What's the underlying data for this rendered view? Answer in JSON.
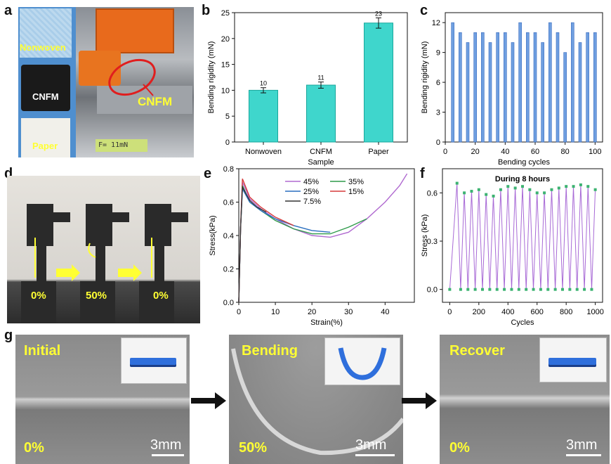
{
  "panels": {
    "a": "a",
    "b": "b",
    "c": "c",
    "d": "d",
    "e": "e",
    "f": "f",
    "g": "g"
  },
  "panel_a": {
    "sample_labels": [
      "Nonwoven",
      "CNFM",
      "Paper"
    ],
    "instrument_label": "CNFM",
    "readout": "F=  11mN"
  },
  "panel_d": {
    "labels": [
      "0%",
      "50%",
      "0%"
    ]
  },
  "panel_g": {
    "stages": [
      {
        "title": "Initial",
        "pct": "0%",
        "scale": "3mm"
      },
      {
        "title": "Bending",
        "pct": "50%",
        "scale": "3mm"
      },
      {
        "title": "Recover",
        "pct": "0%",
        "scale": "3mm"
      }
    ]
  },
  "chart_data": [
    {
      "id": "b",
      "type": "bar",
      "categories": [
        "Nonwoven",
        "CNFM",
        "Paper"
      ],
      "values": [
        10,
        11,
        23
      ],
      "errors": [
        0.5,
        0.6,
        1.0
      ],
      "data_labels": [
        "10",
        "11",
        "23"
      ],
      "xlabel": "Sample",
      "ylabel": "Bending rigidity (mN)",
      "ylim": [
        0,
        25
      ],
      "yticks": [
        0,
        5,
        10,
        15,
        20,
        25
      ],
      "color": "#3fd6cc"
    },
    {
      "id": "c",
      "type": "bar",
      "x": [
        5,
        10,
        15,
        20,
        25,
        30,
        35,
        40,
        45,
        50,
        55,
        60,
        65,
        70,
        75,
        80,
        85,
        90,
        95,
        100
      ],
      "values": [
        12,
        11,
        10,
        11,
        11,
        10,
        11,
        11,
        10,
        12,
        11,
        11,
        10,
        12,
        11,
        9,
        12,
        10,
        11,
        11
      ],
      "xlabel": "Bending cycles",
      "ylabel": "Bending rigidity (mN)",
      "xlim": [
        0,
        105
      ],
      "ylim": [
        0,
        13
      ],
      "xticks": [
        0,
        20,
        40,
        60,
        80,
        100
      ],
      "yticks": [
        0,
        3,
        6,
        9,
        12
      ],
      "color": "#6f9fe0"
    },
    {
      "id": "e",
      "type": "line",
      "xlabel": "Strain(%)",
      "ylabel": "Stress(kPa)",
      "xlim": [
        0,
        48
      ],
      "ylim": [
        0,
        0.8
      ],
      "xticks": [
        0,
        10,
        20,
        30,
        40
      ],
      "yticks": [
        0.0,
        0.2,
        0.4,
        0.6,
        0.8
      ],
      "series": [
        {
          "name": "45%",
          "color": "#b06ad0",
          "points": [
            [
              0,
              0
            ],
            [
              0.5,
              0.45
            ],
            [
              1,
              0.72
            ],
            [
              3,
              0.62
            ],
            [
              6,
              0.56
            ],
            [
              10,
              0.5
            ],
            [
              15,
              0.44
            ],
            [
              20,
              0.4
            ],
            [
              25,
              0.39
            ],
            [
              30,
              0.42
            ],
            [
              35,
              0.5
            ],
            [
              40,
              0.6
            ],
            [
              44,
              0.7
            ],
            [
              46,
              0.77
            ]
          ]
        },
        {
          "name": "35%",
          "color": "#2e9a4a",
          "points": [
            [
              0,
              0
            ],
            [
              0.5,
              0.45
            ],
            [
              1,
              0.7
            ],
            [
              3,
              0.6
            ],
            [
              6,
              0.55
            ],
            [
              10,
              0.49
            ],
            [
              15,
              0.44
            ],
            [
              20,
              0.41
            ],
            [
              25,
              0.41
            ],
            [
              30,
              0.45
            ],
            [
              35,
              0.5
            ]
          ]
        },
        {
          "name": "25%",
          "color": "#2a6fbf",
          "points": [
            [
              0,
              0
            ],
            [
              0.5,
              0.45
            ],
            [
              1,
              0.68
            ],
            [
              3,
              0.6
            ],
            [
              6,
              0.55
            ],
            [
              10,
              0.5
            ],
            [
              15,
              0.46
            ],
            [
              20,
              0.43
            ],
            [
              25,
              0.42
            ]
          ]
        },
        {
          "name": "15%",
          "color": "#d63a3a",
          "points": [
            [
              0,
              0
            ],
            [
              0.5,
              0.45
            ],
            [
              1,
              0.74
            ],
            [
              3,
              0.63
            ],
            [
              6,
              0.57
            ],
            [
              10,
              0.51
            ],
            [
              15,
              0.46
            ]
          ]
        },
        {
          "name": "7.5%",
          "color": "#333333",
          "points": [
            [
              0,
              0
            ],
            [
              0.5,
              0.45
            ],
            [
              1,
              0.69
            ],
            [
              3,
              0.61
            ],
            [
              5,
              0.57
            ],
            [
              7.5,
              0.54
            ]
          ]
        }
      ],
      "legend": "top-right"
    },
    {
      "id": "f",
      "type": "line",
      "title": "During 8 hours",
      "xlabel": "Cycles",
      "ylabel": "Stress (kPa)",
      "xlim": [
        -50,
        1050
      ],
      "ylim": [
        -0.08,
        0.75
      ],
      "xticks": [
        0,
        200,
        400,
        600,
        800,
        1000
      ],
      "yticks": [
        0.0,
        0.3,
        0.6
      ],
      "peaks_x": [
        50,
        100,
        150,
        200,
        250,
        300,
        350,
        400,
        450,
        500,
        550,
        600,
        650,
        700,
        750,
        800,
        850,
        900,
        950,
        1000
      ],
      "peaks_y": [
        0.66,
        0.6,
        0.61,
        0.62,
        0.59,
        0.58,
        0.62,
        0.64,
        0.63,
        0.64,
        0.62,
        0.6,
        0.6,
        0.62,
        0.63,
        0.64,
        0.64,
        0.65,
        0.64,
        0.62
      ],
      "line_color": "#a86ad6",
      "marker_color": "#3cb371"
    }
  ]
}
